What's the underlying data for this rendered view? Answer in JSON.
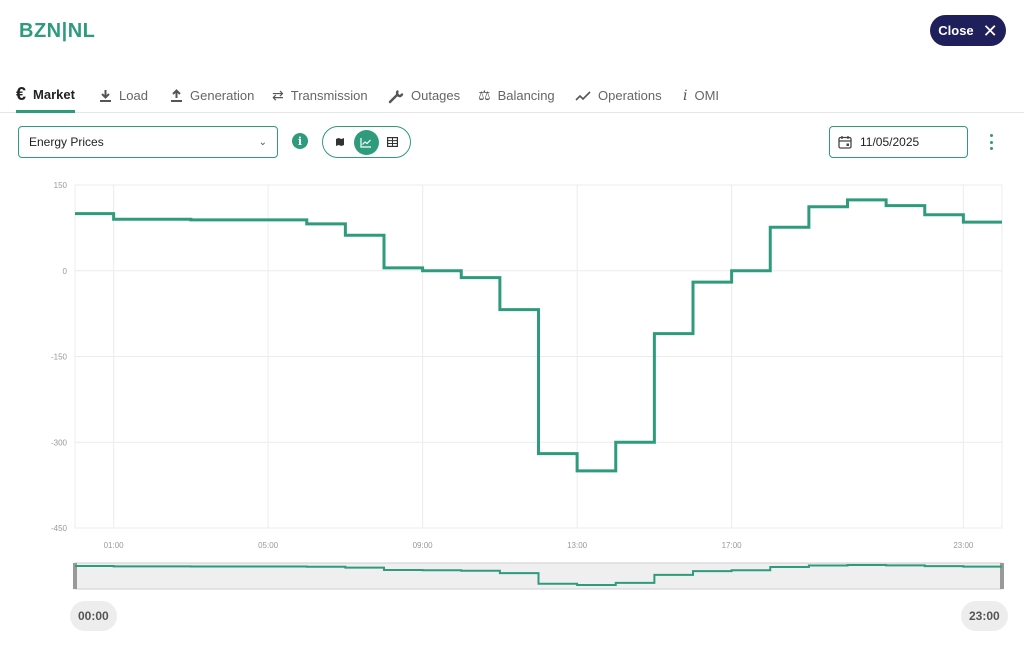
{
  "header": {
    "title": "BZN|NL",
    "close_label": "Close"
  },
  "tabs": [
    {
      "label": "Market",
      "icon": "euro-icon",
      "active": true
    },
    {
      "label": "Load",
      "icon": "download-icon",
      "active": false
    },
    {
      "label": "Generation",
      "icon": "upload-icon",
      "active": false
    },
    {
      "label": "Transmission",
      "icon": "swap-arrows-icon",
      "active": false
    },
    {
      "label": "Outages",
      "icon": "wrench-icon",
      "active": false
    },
    {
      "label": "Balancing",
      "icon": "scale-icon",
      "active": false
    },
    {
      "label": "Operations",
      "icon": "trend-line-icon",
      "active": false
    },
    {
      "label": "OMI",
      "icon": "info-italic-icon",
      "active": false
    }
  ],
  "toolbar": {
    "dataset_value": "Energy Prices",
    "date_value": "11/05/2025",
    "view_options": [
      {
        "name": "map",
        "icon": "map-icon",
        "active": false
      },
      {
        "name": "chart",
        "icon": "line-chart-icon",
        "active": true
      },
      {
        "name": "table",
        "icon": "table-icon",
        "active": false
      }
    ]
  },
  "chart_data": {
    "type": "line",
    "step": true,
    "x": [
      "00:00",
      "01:00",
      "02:00",
      "03:00",
      "04:00",
      "05:00",
      "06:00",
      "07:00",
      "08:00",
      "09:00",
      "10:00",
      "11:00",
      "12:00",
      "13:00",
      "14:00",
      "15:00",
      "16:00",
      "17:00",
      "18:00",
      "19:00",
      "20:00",
      "21:00",
      "22:00",
      "23:00"
    ],
    "values": [
      100,
      90,
      90,
      89,
      89,
      89,
      82,
      62,
      5,
      0,
      -12,
      -68,
      -320,
      -350,
      -300,
      -110,
      -20,
      0,
      76,
      112,
      124,
      114,
      98,
      85
    ],
    "x_ticks": [
      "01:00",
      "05:00",
      "09:00",
      "13:00",
      "17:00",
      "23:00"
    ],
    "y_ticks": [
      150,
      0,
      -150,
      -300,
      -450
    ],
    "ylim": [
      -450,
      150
    ],
    "grid": true,
    "color": "#2e9b7c"
  },
  "range": {
    "start_label": "00:00",
    "end_label": "23:00"
  },
  "colors": {
    "accent": "#2e9b7c",
    "close_button": "#1f1f5c"
  }
}
